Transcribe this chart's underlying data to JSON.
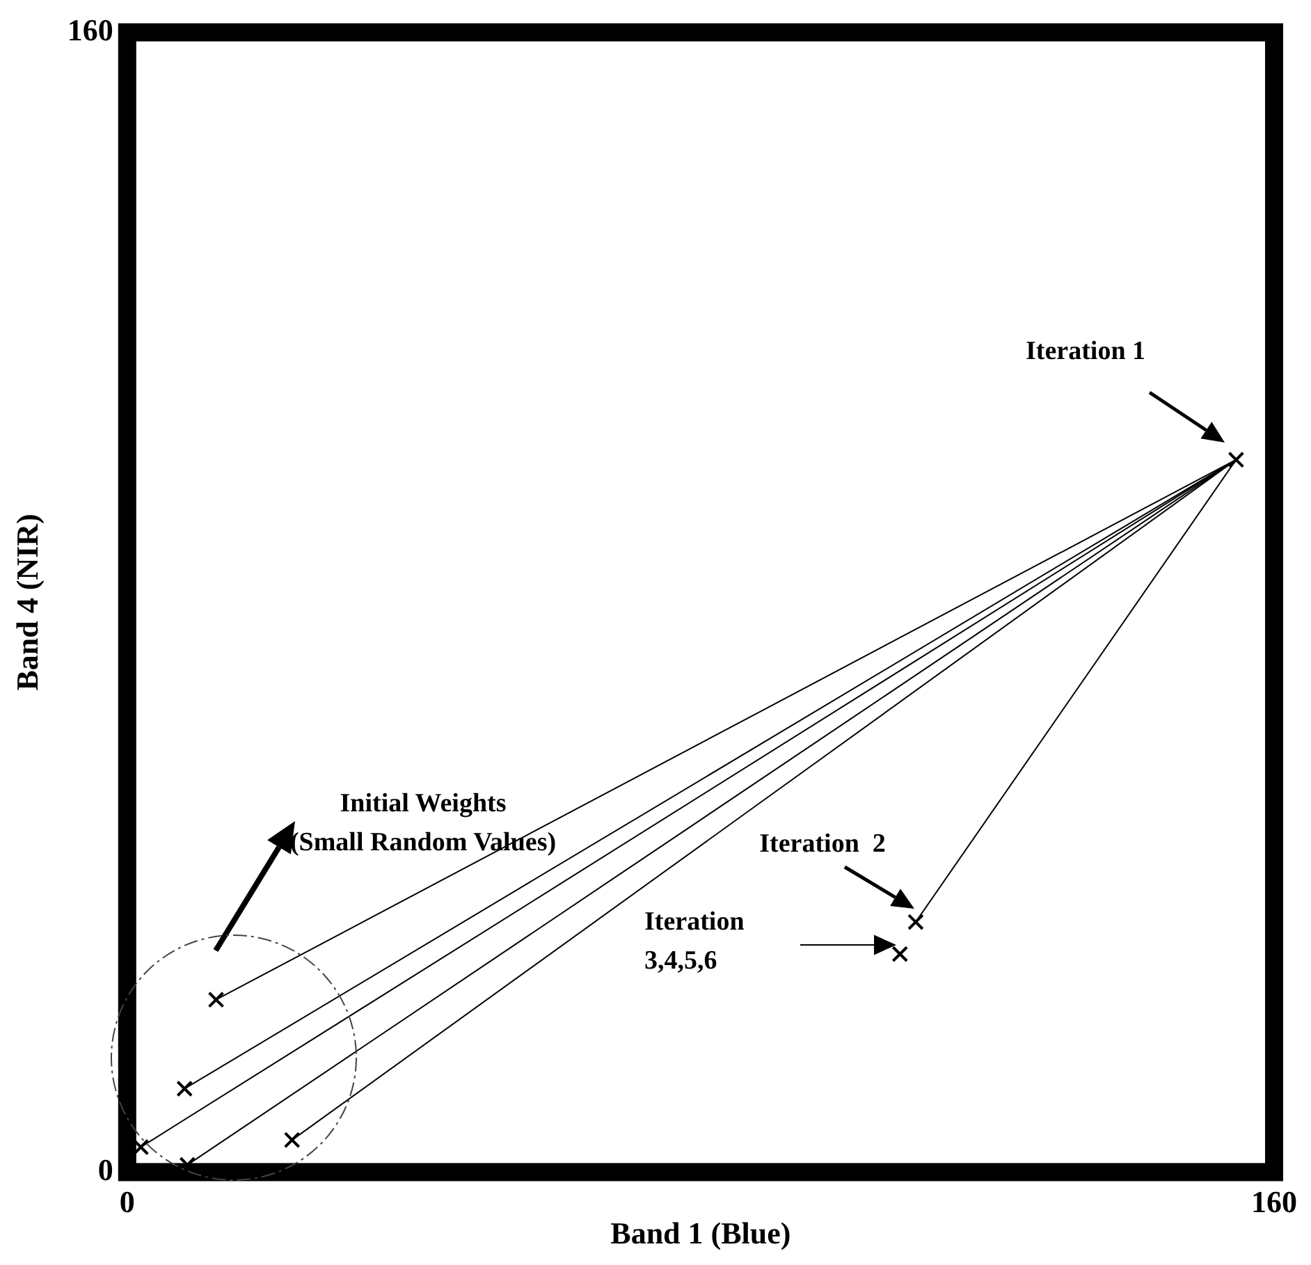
{
  "chart_data": {
    "type": "scatter",
    "xlabel": "Band 1 (Blue)",
    "ylabel": "Band 4 (NIR)",
    "xlim": [
      0,
      160
    ],
    "ylim": [
      0,
      160
    ],
    "xticks": [
      0,
      160
    ],
    "yticks": [
      0,
      160
    ],
    "series": [
      {
        "type": "line",
        "color": "#000000",
        "x": [
          12.4,
          154.7
        ],
        "values": [
          24.2,
          100
        ]
      },
      {
        "type": "line",
        "color": "#000000",
        "x": [
          8,
          154.7
        ],
        "values": [
          11.7,
          100
        ]
      },
      {
        "type": "line",
        "color": "#000000",
        "x": [
          1.9,
          154.7
        ],
        "values": [
          3.5,
          100
        ]
      },
      {
        "type": "line",
        "color": "#000000",
        "x": [
          8.4,
          154.7
        ],
        "values": [
          1,
          100
        ]
      },
      {
        "type": "line",
        "color": "#000000",
        "x": [
          23,
          154.7
        ],
        "values": [
          4.5,
          100
        ]
      },
      {
        "type": "line",
        "color": "#000000",
        "x": [
          154.7,
          110
        ],
        "values": [
          100,
          35.1
        ]
      },
      {
        "marker": "cross",
        "color": "#000000",
        "x": [
          12.4,
          8,
          1.9,
          8.4,
          23,
          154.7,
          110,
          107.8
        ],
        "values": [
          24.2,
          11.7,
          3.5,
          1,
          4.5,
          100,
          35.1,
          30.6
        ]
      }
    ],
    "annotations": [
      "Iteration 1",
      "Iteration  2",
      "Iteration\n3,4,5,6",
      "Initial Weights\n(Small Random Values)"
    ]
  }
}
